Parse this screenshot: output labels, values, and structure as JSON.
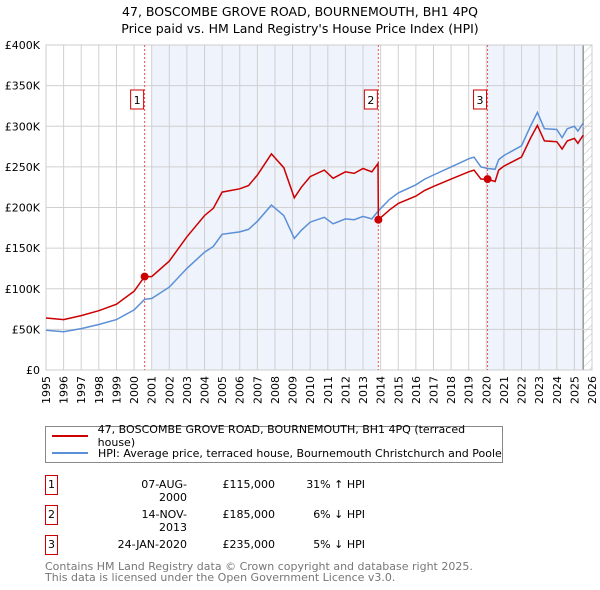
{
  "title_line1": "47, BOSCOMBE GROVE ROAD, BOURNEMOUTH, BH1 4PQ",
  "title_line2": "Price paid vs. HM Land Registry's House Price Index (HPI)",
  "chart_data": {
    "type": "line",
    "title": "47, BOSCOMBE GROVE ROAD, BOURNEMOUTH, BH1 4PQ — Price paid vs. HM Land Registry's House Price Index (HPI)",
    "xlim": [
      1995,
      2026
    ],
    "ylim": [
      0,
      400000
    ],
    "x_ticks": [
      "1995",
      "1996",
      "1997",
      "1998",
      "1999",
      "2000",
      "2001",
      "2002",
      "2003",
      "2004",
      "2005",
      "2006",
      "2007",
      "2008",
      "2009",
      "2010",
      "2011",
      "2012",
      "2013",
      "2014",
      "2015",
      "2016",
      "2017",
      "2018",
      "2019",
      "2020",
      "2021",
      "2022",
      "2023",
      "2024",
      "2025",
      "2026"
    ],
    "y_ticks": [
      {
        "v": 0,
        "label": "£0"
      },
      {
        "v": 50000,
        "label": "£50K"
      },
      {
        "v": 100000,
        "label": "£100K"
      },
      {
        "v": 150000,
        "label": "£150K"
      },
      {
        "v": 200000,
        "label": "£200K"
      },
      {
        "v": 250000,
        "label": "£250K"
      },
      {
        "v": 300000,
        "label": "£300K"
      },
      {
        "v": 350000,
        "label": "£350K"
      },
      {
        "v": 400000,
        "label": "£400K"
      }
    ],
    "grid": true,
    "shaded_ranges": [
      [
        2001.0,
        2013.87
      ],
      [
        2020.07,
        2025.5
      ]
    ],
    "hatched_from": 2025.5,
    "series": [
      {
        "name": "47, BOSCOMBE GROVE ROAD, BOURNEMOUTH, BH1 4PQ (terraced house)",
        "color": "#cc0000",
        "x": [
          1995,
          1996,
          1997,
          1998,
          1999,
          2000,
          2000.6,
          2001,
          2002,
          2003,
          2004,
          2004.5,
          2005,
          2006,
          2006.5,
          2007,
          2007.8,
          2008.5,
          2009.1,
          2009.5,
          2010,
          2010.8,
          2011.3,
          2012,
          2012.5,
          2013,
          2013.5,
          2013.85,
          2013.87,
          2014.5,
          2015,
          2016,
          2016.5,
          2017,
          2018,
          2019,
          2019.3,
          2019.7,
          2020.07,
          2020.5,
          2020.7,
          2021,
          2022,
          2022.5,
          2022.9,
          2023.3,
          2024,
          2024.3,
          2024.6,
          2025,
          2025.2,
          2025.5
        ],
        "y": [
          64000,
          62000,
          67000,
          73000,
          81000,
          97000,
          115000,
          115000,
          134000,
          164000,
          190000,
          199000,
          219000,
          223000,
          227000,
          240000,
          266000,
          249000,
          212000,
          225000,
          238000,
          246000,
          236000,
          244000,
          242000,
          248000,
          244000,
          254000,
          185000,
          197000,
          205000,
          214000,
          221000,
          226000,
          235000,
          244000,
          246000,
          235000,
          235000,
          232000,
          246000,
          251000,
          262000,
          285000,
          301000,
          282000,
          281000,
          272000,
          282000,
          285000,
          279000,
          289000
        ]
      },
      {
        "name": "HPI: Average price, terraced house, Bournemouth Christchurch and Poole",
        "color": "#5b8fd6",
        "x": [
          1995,
          1996,
          1997,
          1998,
          1999,
          2000,
          2000.6,
          2001,
          2002,
          2003,
          2004,
          2004.5,
          2005,
          2006,
          2006.5,
          2007,
          2007.8,
          2008.5,
          2009.1,
          2009.5,
          2010,
          2010.8,
          2011.3,
          2012,
          2012.5,
          2013,
          2013.5,
          2013.87,
          2014.5,
          2015,
          2016,
          2016.5,
          2017,
          2018,
          2019,
          2019.3,
          2019.7,
          2020.07,
          2020.5,
          2020.7,
          2021,
          2022,
          2022.5,
          2022.9,
          2023.3,
          2024,
          2024.3,
          2024.6,
          2025,
          2025.2,
          2025.5
        ],
        "y": [
          49000,
          47000,
          51000,
          56000,
          62000,
          74000,
          87000,
          88000,
          102000,
          125000,
          145000,
          152000,
          167000,
          170000,
          173000,
          183000,
          203000,
          190000,
          162000,
          172000,
          182000,
          188000,
          180000,
          186000,
          185000,
          189000,
          186000,
          196000,
          210000,
          218000,
          228000,
          235000,
          240000,
          250000,
          260000,
          262000,
          250000,
          248000,
          247000,
          259000,
          264000,
          276000,
          300000,
          317000,
          297000,
          296000,
          286000,
          297000,
          300000,
          294000,
          304000
        ]
      }
    ],
    "sales": [
      {
        "label": "1",
        "x": 2000.6,
        "y": 115000,
        "date": "07-AUG-2000",
        "price": "£115,000",
        "hpi": "31% ↑ HPI"
      },
      {
        "label": "2",
        "x": 2013.87,
        "y": 185000,
        "date": "14-NOV-2013",
        "price": "£185,000",
        "hpi": "6% ↓ HPI"
      },
      {
        "label": "3",
        "x": 2020.07,
        "y": 235000,
        "date": "24-JAN-2020",
        "price": "£235,000",
        "hpi": "5% ↓ HPI"
      }
    ],
    "legend_placement": "below"
  },
  "legend": {
    "red": "47, BOSCOMBE GROVE ROAD, BOURNEMOUTH, BH1 4PQ (terraced house)",
    "blue": "HPI: Average price, terraced house, Bournemouth Christchurch and Poole"
  },
  "footer_line1": "Contains HM Land Registry data © Crown copyright and database right 2025.",
  "footer_line2": "This data is licensed under the Open Government Licence v3.0."
}
